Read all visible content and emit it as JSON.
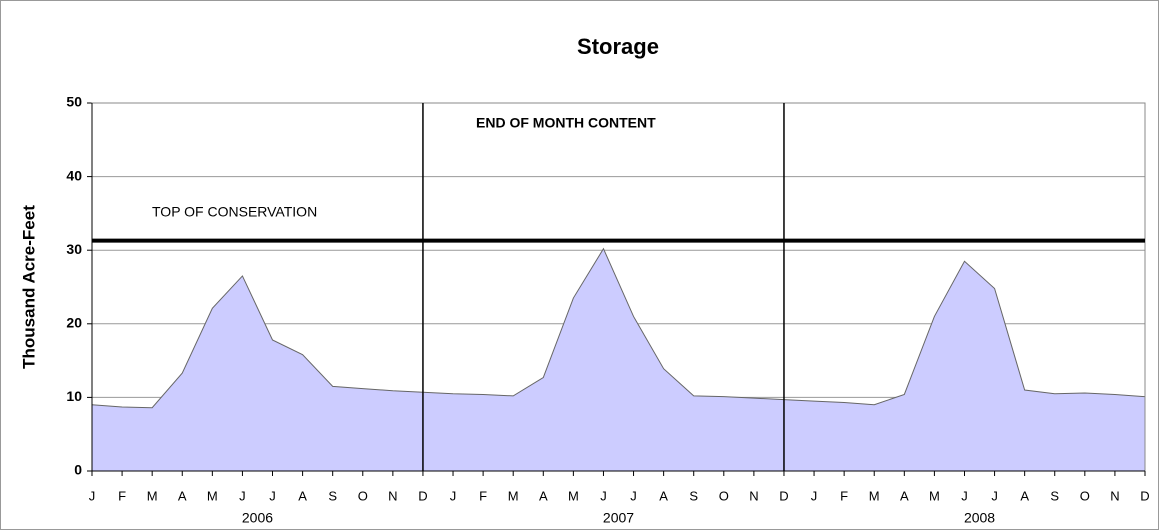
{
  "chart_data": {
    "type": "area",
    "title": "Storage",
    "y_label": "Thousand Acre-Feet",
    "categories": [
      "J",
      "F",
      "M",
      "A",
      "M",
      "J",
      "J",
      "A",
      "S",
      "O",
      "N",
      "D",
      "J",
      "F",
      "M",
      "A",
      "M",
      "J",
      "J",
      "A",
      "S",
      "O",
      "N",
      "D",
      "J",
      "F",
      "M",
      "A",
      "M",
      "J",
      "J",
      "A",
      "S",
      "O",
      "N",
      "D"
    ],
    "year_labels": [
      "2006",
      "2007",
      "2008"
    ],
    "series": [
      {
        "name": "End of Month Content",
        "color": "#ccccff",
        "values": [
          9.0,
          8.7,
          8.6,
          13.3,
          22.1,
          26.5,
          17.8,
          15.8,
          11.5,
          11.2,
          10.9,
          10.7,
          10.5,
          10.4,
          10.2,
          12.7,
          23.5,
          30.2,
          21.0,
          13.9,
          10.2,
          10.1,
          9.9,
          9.7,
          9.5,
          9.3,
          9.0,
          10.4,
          21.0,
          28.5,
          24.8,
          11.0,
          10.5,
          10.6,
          10.4,
          10.1
        ]
      }
    ],
    "reference_lines": [
      {
        "value": 31.3,
        "label": "TOP OF CONSERVATION"
      }
    ],
    "annotations": [
      "END OF MONTH CONTENT"
    ],
    "ylim": [
      0,
      50
    ],
    "yticks": [
      0,
      10,
      20,
      30,
      40,
      50
    ],
    "grid": true
  }
}
